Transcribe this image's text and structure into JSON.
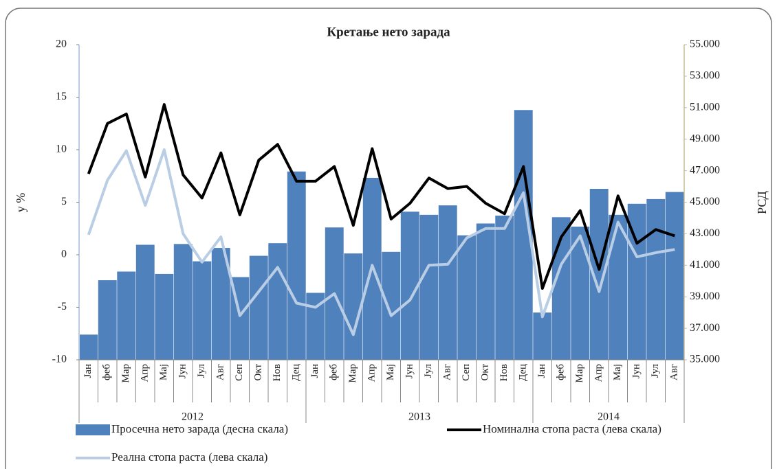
{
  "chart_data": {
    "type": "bar",
    "title": "Кретање нето зарада",
    "y_label": "у %",
    "y2_label": "РСД",
    "categories": [
      "Јан",
      "феб",
      "Мар",
      "Апр",
      "Мај",
      "Јун",
      "Јул",
      "Авг",
      "Сеп",
      "Окт",
      "Нов",
      "Дец",
      "Јан",
      "феб",
      "Мар",
      "Апр",
      "Мај",
      "Јун",
      "Јул",
      "Авг",
      "Сеп",
      "Окт",
      "Нов",
      "Дец",
      "Јан",
      "феб",
      "Мар",
      "Апр",
      "Мај",
      "Јун",
      "Јул",
      "Авг"
    ],
    "years": [
      "2012",
      "2013",
      "2014"
    ],
    "ylim": [
      -10,
      20
    ],
    "yticks": [
      -10,
      -5,
      0,
      5,
      10,
      15,
      20
    ],
    "y2lim": [
      35000,
      55000
    ],
    "y2ticks": [
      {
        "value": 35000,
        "label": "35.000"
      },
      {
        "value": 37000,
        "label": "37.000"
      },
      {
        "value": 39000,
        "label": "39.000"
      },
      {
        "value": 41000,
        "label": "41.000"
      },
      {
        "value": 43000,
        "label": "43.000"
      },
      {
        "value": 45000,
        "label": "45.000"
      },
      {
        "value": 47000,
        "label": "47.000"
      },
      {
        "value": 49000,
        "label": "49.000"
      },
      {
        "value": 51000,
        "label": "51.000"
      },
      {
        "value": 53000,
        "label": "53.000"
      },
      {
        "value": 55000,
        "label": "55.000"
      }
    ],
    "series": [
      {
        "name": "Просечна нето зарада (десна скала)",
        "type": "bar",
        "axis": "y2",
        "color": "#4f81bd",
        "values": [
          36600,
          40050,
          40600,
          42300,
          40450,
          42350,
          41250,
          42100,
          40250,
          41600,
          42400,
          46950,
          39250,
          43400,
          41750,
          46550,
          41850,
          44400,
          44200,
          44800,
          42900,
          43650,
          44150,
          50850,
          38000,
          44050,
          43450,
          45850,
          44200,
          44900,
          45200,
          45650
        ]
      },
      {
        "name": "Номинална стопа раста (лева скала)",
        "type": "line",
        "color": "#000000",
        "values": [
          7.7,
          12.5,
          13.4,
          7.4,
          14.3,
          7.6,
          5.4,
          9.7,
          3.8,
          9.0,
          10.5,
          7.0,
          7.0,
          8.4,
          2.8,
          10.1,
          3.4,
          4.9,
          7.3,
          6.3,
          6.5,
          4.9,
          3.9,
          8.4,
          -3.2,
          1.7,
          4.2,
          -1.4,
          5.6,
          1.1,
          2.4,
          1.8
        ]
      },
      {
        "name": "Реална стопа раста (лева скала)",
        "type": "line",
        "color": "#b9cde5",
        "values": [
          1.9,
          7.1,
          9.9,
          4.7,
          10.0,
          2.0,
          -0.7,
          1.7,
          -5.8,
          -3.5,
          -1.2,
          -4.6,
          -5.0,
          -3.7,
          -7.6,
          -1.0,
          -5.8,
          -4.3,
          -1.0,
          -0.9,
          1.6,
          2.5,
          2.5,
          5.9,
          -5.9,
          -0.9,
          1.8,
          -3.5,
          3.1,
          -0.2,
          0.2,
          0.5
        ]
      }
    ]
  }
}
